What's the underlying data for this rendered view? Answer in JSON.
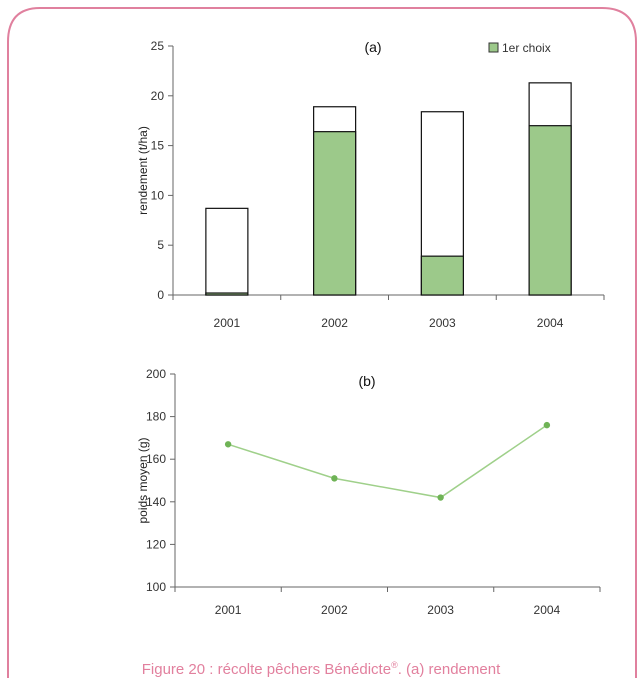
{
  "colors": {
    "frame": "#e0809e",
    "bar_fill": "#9cc98a",
    "total_fill": "#ffffff",
    "line": "#9fd08a",
    "marker": "#6fb356"
  },
  "caption": {
    "line1": "Figure 20 : récolte pêchers Bénédicte",
    "reg": "®",
    "line1b": ". (a) rendement",
    "line2": ""
  },
  "chart_data": [
    {
      "type": "bar",
      "panel_label": "(a)",
      "categories": [
        "2001",
        "2002",
        "2003",
        "2004"
      ],
      "series": [
        {
          "name": "1er choix",
          "values": [
            0.2,
            16.4,
            3.9,
            17.0
          ]
        },
        {
          "name": "",
          "values": [
            8.7,
            18.9,
            18.4,
            21.3
          ]
        }
      ],
      "ylabel": "rendement (t/ha)",
      "ylim": [
        0,
        25
      ],
      "yticks": [
        "0",
        "5",
        "10",
        "15",
        "20",
        "25"
      ],
      "legend": "top-right",
      "grid": false
    },
    {
      "type": "line",
      "panel_label": "(b)",
      "categories": [
        "2001",
        "2002",
        "2003",
        "2004"
      ],
      "values": [
        167,
        151,
        142,
        176
      ],
      "ylabel": "poids moyen (g)",
      "ylim": [
        100,
        200
      ],
      "yticks": [
        "100",
        "120",
        "140",
        "160",
        "180",
        "200"
      ],
      "grid": false
    }
  ]
}
